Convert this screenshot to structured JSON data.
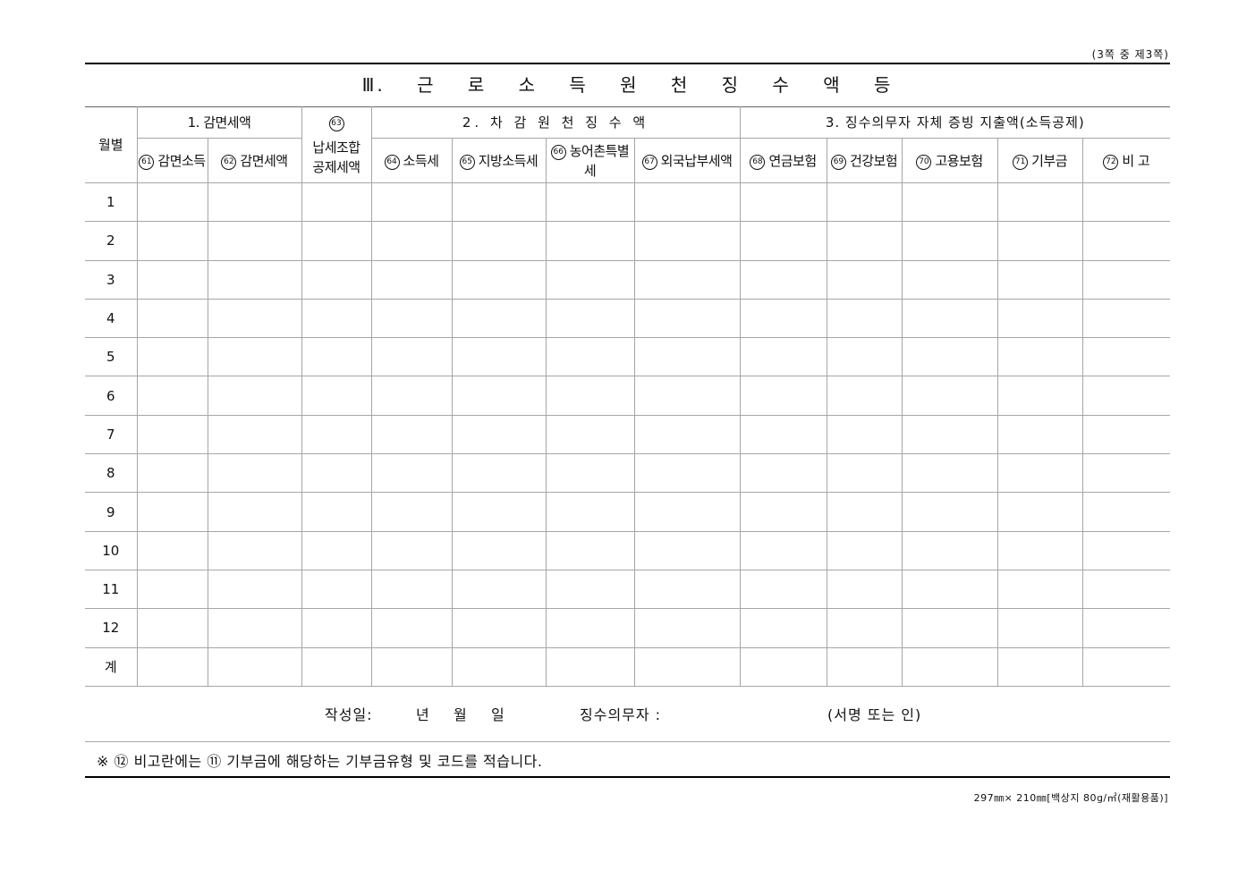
{
  "page_indicator": "(3쪽 중 제3쪽)",
  "title": "Ⅲ. 근 로 소 득 원 천 징 수 액 등",
  "header": {
    "month_label": "월별",
    "group1": "1. 감면세액",
    "group2": "2. 차 감 원 천 징 수 액",
    "group3": "3. 징수의무자 자체 증빙 지출액(소득공제)",
    "col63_num": "63",
    "col63_label": "납세조합\n공제세액",
    "columns": [
      {
        "num": "61",
        "label": "감면소득"
      },
      {
        "num": "62",
        "label": "감면세액"
      },
      {
        "num": "64",
        "label": "소득세"
      },
      {
        "num": "65",
        "label": "지방소득세"
      },
      {
        "num": "66",
        "label": "농어촌특별세"
      },
      {
        "num": "67",
        "label": "외국납부세액"
      },
      {
        "num": "68",
        "label": "연금보험"
      },
      {
        "num": "69",
        "label": "건강보험"
      },
      {
        "num": "70",
        "label": "고용보험"
      },
      {
        "num": "71",
        "label": "기부금"
      },
      {
        "num": "72",
        "label": "비 고"
      }
    ]
  },
  "circled_numbers": {
    "61": "⑹",
    "note_72": "⑫"
  },
  "rows": [
    "1",
    "2",
    "3",
    "4",
    "5",
    "6",
    "7",
    "8",
    "9",
    "10",
    "11",
    "12",
    "계"
  ],
  "signature": {
    "date_label": "작성일:",
    "year": "년",
    "month": "월",
    "day": "일",
    "withholder_label": "징수의무자 :",
    "sign_hint": "(서명 또는 인)"
  },
  "note": "※ ⑫ 비고란에는 ⑪ 기부금에 해당하는 기부금유형 및 코드를 적습니다.",
  "footer_spec": "297㎜× 210㎜[백상지 80g/㎡(재활용품)]"
}
